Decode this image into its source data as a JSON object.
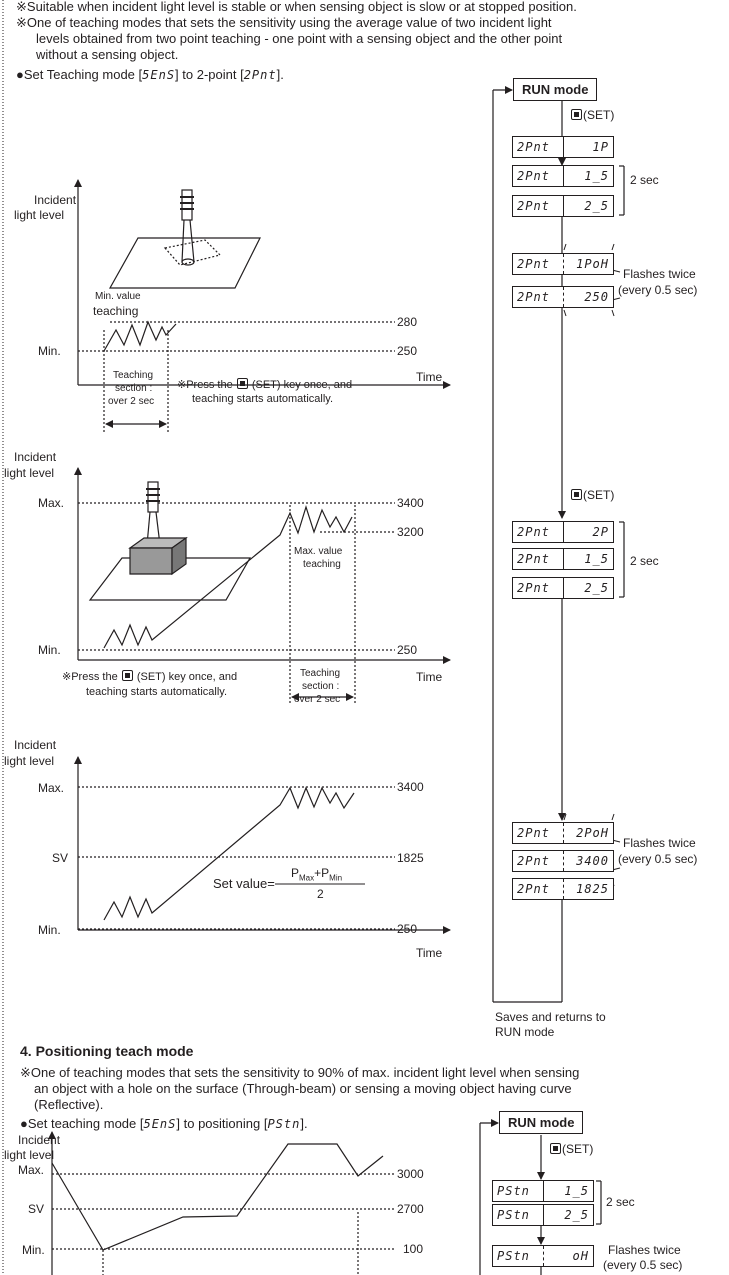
{
  "sec3": {
    "note1": "※Suitable when incident light level is stable or when sensing object is slow or at stopped position.",
    "note2a": "※One of teaching modes that sets the sensitivity using the average value of two incident light",
    "note2b": "levels obtained from two point teaching - one point with a sensing object and the other point",
    "note2c": "without a sensing object.",
    "set_pre": "●Set Teaching mode [",
    "set_code1": "5EnS",
    "set_mid": "] to 2-point [",
    "set_code2": "2Pnt",
    "set_post": "]."
  },
  "chart1": {
    "ylabel_1": "Incident",
    "ylabel_2": "light level",
    "min": "Min.",
    "annot_1": "Min. value",
    "annot_2": "teaching",
    "val_280": "280",
    "val_250": "250",
    "xlabel": "Time",
    "section_1": "Teaching",
    "section_2": "section :",
    "section_3": "over 2 sec",
    "press_pre": "※Press the",
    "press_post": "(SET) key once, and",
    "press_2": "teaching starts automatically."
  },
  "chart2": {
    "ylabel_1": "Incident",
    "ylabel_2": "light level",
    "max": "Max.",
    "min": "Min.",
    "val_3400": "3400",
    "val_3200": "3200",
    "val_250": "250",
    "annot_1": "Max. value",
    "annot_2": "teaching",
    "xlabel": "Time",
    "press_pre": "※Press the",
    "press_post": "(SET) key once, and",
    "press_2": "teaching starts automatically.",
    "section_1": "Teaching",
    "section_2": "section :",
    "section_3": "over 2 sec"
  },
  "chart3": {
    "ylabel_1": "Incident",
    "ylabel_2": "light level",
    "max": "Max.",
    "sv": "SV",
    "min": "Min.",
    "val_3400": "3400",
    "val_1825": "1825",
    "val_250": "250",
    "xlabel": "Time",
    "formula_label": "Set value=",
    "formula_p": "P",
    "formula_max": "Max",
    "formula_plus": "+P",
    "formula_min": "Min",
    "formula_den": "2"
  },
  "flow1": {
    "run_mode": "RUN mode",
    "set1": "(SET)",
    "set2": "(SET)",
    "two_sec_1": "2 sec",
    "two_sec_2": "2 sec",
    "flash_1a": "Flashes twice",
    "flash_1b": "(every 0.5 sec)",
    "flash_2a": "Flashes twice",
    "flash_2b": "(every 0.5 sec)",
    "saves_1": "Saves and returns to",
    "saves_2": "RUN mode",
    "displays": [
      {
        "l": "2Pnt",
        "r": "1P"
      },
      {
        "l": "2Pnt",
        "r": "1_5"
      },
      {
        "l": "2Pnt",
        "r": "2_5"
      },
      {
        "l": "2Pnt",
        "r": "1PoH"
      },
      {
        "l": "2Pnt",
        "r": "250"
      },
      {
        "l": "2Pnt",
        "r": "2P"
      },
      {
        "l": "2Pnt",
        "r": "1_5"
      },
      {
        "l": "2Pnt",
        "r": "2_5"
      },
      {
        "l": "2Pnt",
        "r": "2PoH"
      },
      {
        "l": "2Pnt",
        "r": "3400"
      },
      {
        "l": "2Pnt",
        "r": "1825"
      }
    ]
  },
  "sec4": {
    "title": "4. Positioning teach mode",
    "note_a": "※One of teaching modes that sets the sensitivity to 90% of max. incident light level when sensing",
    "note_b": "an object with a hole on the surface (Through-beam) or sensing a moving object having curve",
    "note_c": "(Reflective).",
    "set_pre": "●Set teaching mode [",
    "set_code1": "5EnS",
    "set_mid": "] to positioning [",
    "set_code2": "PStn",
    "set_post": "]."
  },
  "chart4": {
    "ylabel_1": "Incident",
    "ylabel_2": "light level",
    "max": "Max.",
    "sv": "SV",
    "min": "Min.",
    "val_3000": "3000",
    "val_2700": "2700",
    "val_100": "100"
  },
  "flow2": {
    "run_mode": "RUN mode",
    "set1": "(SET)",
    "two_sec": "2 sec",
    "flash_a": "Flashes twice",
    "flash_b": "(every 0.5 sec)",
    "displays": [
      {
        "l": "PStn",
        "r": "1_5"
      },
      {
        "l": "PStn",
        "r": "2_5"
      },
      {
        "l": "PStn",
        "r": "oH"
      }
    ]
  }
}
